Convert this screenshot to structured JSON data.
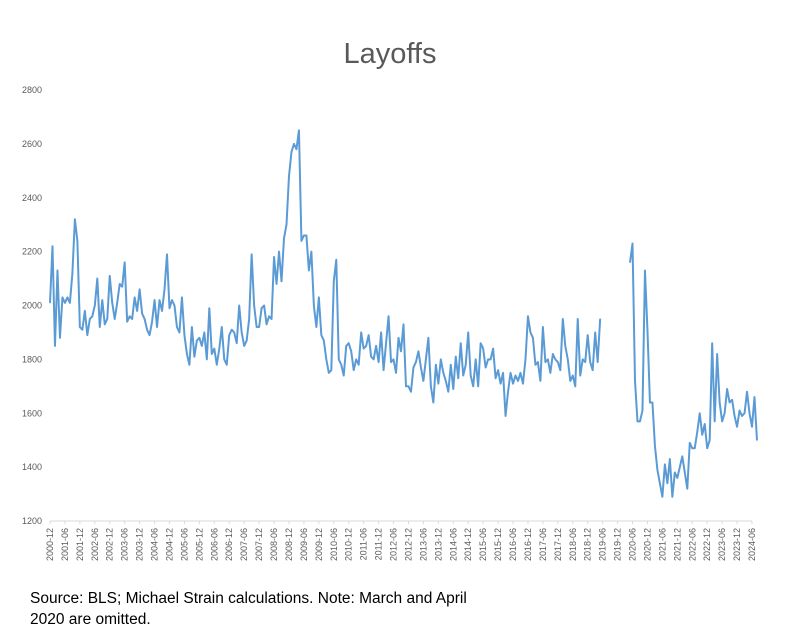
{
  "chart_data": {
    "type": "line",
    "title": "Layoffs",
    "xlabel": "",
    "ylabel": "",
    "ylim": [
      1200,
      2800
    ],
    "yticks": [
      1200,
      1400,
      1600,
      1800,
      2000,
      2200,
      2400,
      2600,
      2800
    ],
    "x_start": "2000-12",
    "x_end": "2024-06",
    "xtick_labels": [
      "2000-12",
      "2001-06",
      "2001-12",
      "2002-06",
      "2002-12",
      "2003-06",
      "2003-12",
      "2004-06",
      "2004-12",
      "2005-06",
      "2005-12",
      "2006-06",
      "2006-12",
      "2007-06",
      "2007-12",
      "2008-06",
      "2008-12",
      "2009-06",
      "2009-12",
      "2010-06",
      "2010-12",
      "2011-06",
      "2011-12",
      "2012-06",
      "2012-12",
      "2013-06",
      "2013-12",
      "2014-06",
      "2014-12",
      "2015-06",
      "2015-12",
      "2016-06",
      "2016-12",
      "2017-06",
      "2017-12",
      "2018-06",
      "2018-12",
      "2019-06",
      "2019-12",
      "2020-06",
      "2020-12",
      "2021-06",
      "2021-12",
      "2022-06",
      "2022-12",
      "2023-06",
      "2023-12",
      "2024-06"
    ],
    "grid": false,
    "legend": "none",
    "line_color": "#5b9bd5",
    "series": [
      {
        "segments": [
          {
            "start": "2000-12",
            "values": [
              2010,
              2220,
              1850,
              2130,
              1880,
              2030,
              2010,
              2030,
              2010,
              2120,
              2320,
              2240,
              1920,
              1910,
              1980,
              1890,
              1950,
              1960,
              2000,
              2100,
              1920,
              2020,
              1930,
              1950,
              2110,
              2010,
              1950,
              2010,
              2080,
              2070,
              2160,
              1940,
              1960,
              1950,
              2030,
              1980,
              2060,
              1970,
              1950,
              1910,
              1890,
              1940,
              2020,
              1920,
              2020,
              1980,
              2060,
              2190,
              1990,
              2020,
              2000,
              1920,
              1900,
              2030,
              1890,
              1820,
              1780,
              1920,
              1810,
              1870,
              1880,
              1850,
              1900,
              1800,
              1990,
              1820,
              1840,
              1780,
              1840,
              1920,
              1800,
              1780,
              1890,
              1910,
              1900,
              1860,
              2000,
              1900,
              1850,
              1870,
              1950,
              2190,
              2000,
              1920,
              1920,
              1990,
              2000,
              1930,
              1960,
              1950,
              2180,
              2080,
              2200,
              2090,
              2250,
              2300,
              2480,
              2570,
              2600,
              2580,
              2650,
              2240,
              2260,
              2260,
              2130,
              2200,
              2000,
              1920,
              2030,
              1890,
              1870,
              1800,
              1750,
              1760,
              2090,
              2170,
              1800,
              1780,
              1740,
              1850,
              1860,
              1830,
              1760,
              1800,
              1780,
              1900,
              1840,
              1850,
              1890,
              1810,
              1800,
              1850,
              1790,
              1900,
              1760,
              1860,
              1960,
              1790,
              1800,
              1750,
              1880,
              1830,
              1930,
              1700,
              1700,
              1680,
              1770,
              1790,
              1830,
              1770,
              1720,
              1800,
              1880,
              1700,
              1640,
              1780,
              1710,
              1800,
              1750,
              1720,
              1680,
              1780,
              1690,
              1810,
              1730,
              1860,
              1740,
              1780,
              1900,
              1740,
              1700,
              1800,
              1700,
              1860,
              1840,
              1770,
              1800,
              1800,
              1840,
              1730,
              1760,
              1710,
              1750,
              1590,
              1680,
              1750,
              1710,
              1740,
              1720,
              1750,
              1710,
              1800,
              1960,
              1900,
              1880,
              1780,
              1790,
              1720,
              1920,
              1790,
              1800,
              1750,
              1820,
              1800,
              1790,
              1760,
              1950,
              1850,
              1800,
              1720,
              1740,
              1700,
              1950,
              1740,
              1800,
              1790,
              1890,
              1790,
              1760,
              1900,
              1790,
              1950
            ]
          },
          {
            "start": "2020-05",
            "values": [
              2160,
              2230,
              1720,
              1570,
              1570,
              1610,
              2130,
              1910,
              1640,
              1640,
              1480,
              1390,
              1340,
              1290,
              1410,
              1340,
              1430,
              1290,
              1380,
              1360,
              1400,
              1440,
              1380,
              1320,
              1490,
              1470,
              1470,
              1530,
              1600,
              1520,
              1560,
              1470,
              1500,
              1860,
              1570,
              1820,
              1640,
              1570,
              1600,
              1690,
              1640,
              1650,
              1590,
              1550,
              1610,
              1590,
              1600,
              1680,
              1600,
              1550,
              1660,
              1500
            ]
          }
        ]
      }
    ]
  },
  "source_note": "Source: BLS; Michael Strain calculations. Note: March and April 2020 are omitted."
}
